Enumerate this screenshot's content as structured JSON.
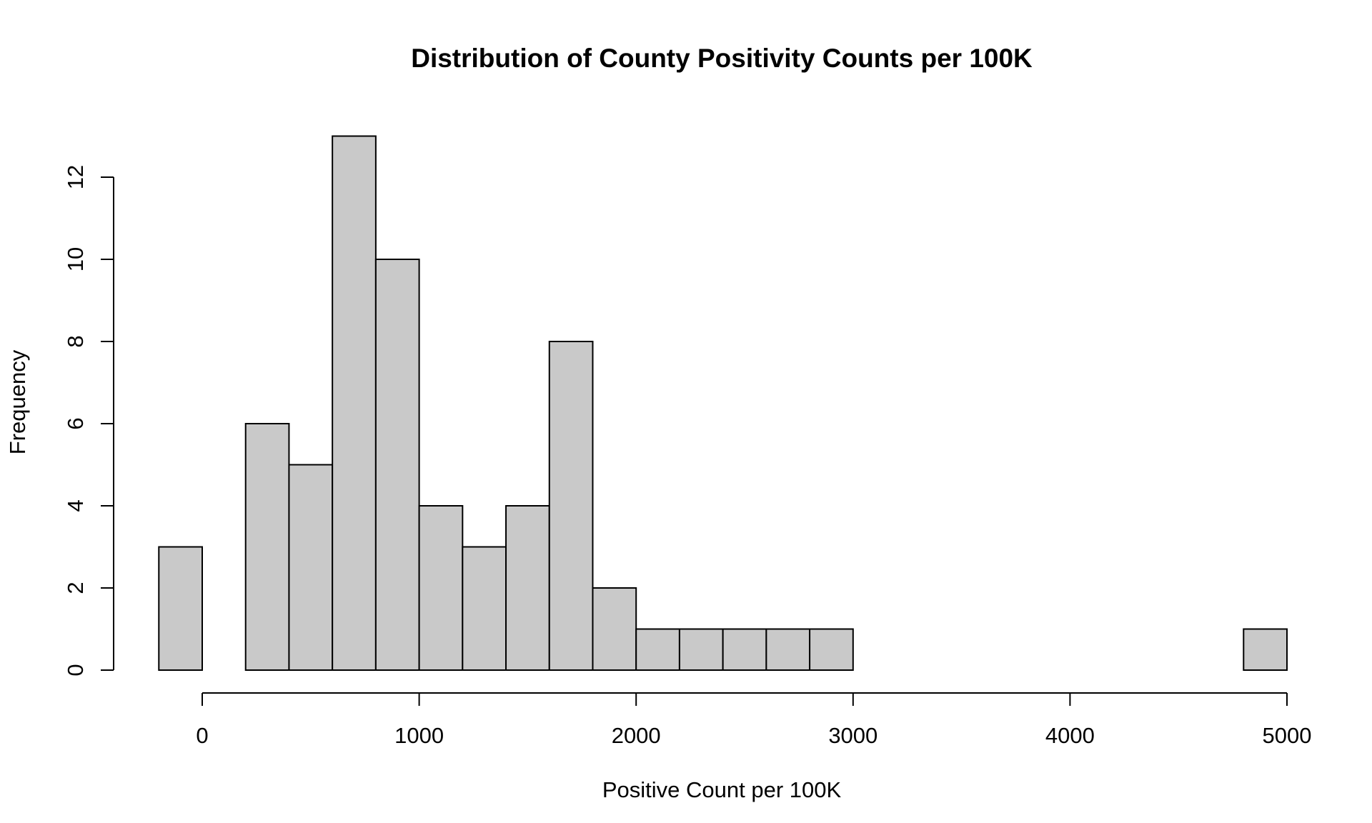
{
  "chart_data": {
    "type": "bar",
    "title": "Distribution of County Positivity Counts per 100K",
    "xlabel": "Positive Count per 100K",
    "ylabel": "Frequency",
    "bin_width": 200,
    "bins": [
      {
        "start": -200,
        "end": 0,
        "count": 3
      },
      {
        "start": 0,
        "end": 200,
        "count": 0
      },
      {
        "start": 200,
        "end": 400,
        "count": 6
      },
      {
        "start": 400,
        "end": 600,
        "count": 5
      },
      {
        "start": 600,
        "end": 800,
        "count": 13
      },
      {
        "start": 800,
        "end": 1000,
        "count": 10
      },
      {
        "start": 1000,
        "end": 1200,
        "count": 4
      },
      {
        "start": 1200,
        "end": 1400,
        "count": 3
      },
      {
        "start": 1400,
        "end": 1600,
        "count": 4
      },
      {
        "start": 1600,
        "end": 1800,
        "count": 8
      },
      {
        "start": 1800,
        "end": 2000,
        "count": 2
      },
      {
        "start": 2000,
        "end": 2200,
        "count": 1
      },
      {
        "start": 2200,
        "end": 2400,
        "count": 1
      },
      {
        "start": 2400,
        "end": 2600,
        "count": 1
      },
      {
        "start": 2600,
        "end": 2800,
        "count": 1
      },
      {
        "start": 2800,
        "end": 3000,
        "count": 1
      },
      {
        "start": 3000,
        "end": 3200,
        "count": 0
      },
      {
        "start": 3200,
        "end": 3400,
        "count": 0
      },
      {
        "start": 3400,
        "end": 3600,
        "count": 0
      },
      {
        "start": 3600,
        "end": 3800,
        "count": 0
      },
      {
        "start": 3800,
        "end": 4000,
        "count": 0
      },
      {
        "start": 4000,
        "end": 4200,
        "count": 0
      },
      {
        "start": 4200,
        "end": 4400,
        "count": 0
      },
      {
        "start": 4400,
        "end": 4600,
        "count": 0
      },
      {
        "start": 4600,
        "end": 4800,
        "count": 0
      },
      {
        "start": 4800,
        "end": 5000,
        "count": 1
      }
    ],
    "xlim": [
      -200,
      5000
    ],
    "ylim": [
      0,
      13
    ],
    "x_ticks": [
      0,
      1000,
      2000,
      3000,
      4000,
      5000
    ],
    "y_ticks": [
      0,
      2,
      4,
      6,
      8,
      10,
      12
    ],
    "bar_color": "#c9c9c9",
    "border_color": "#000000",
    "grid": false,
    "legend": "none"
  }
}
